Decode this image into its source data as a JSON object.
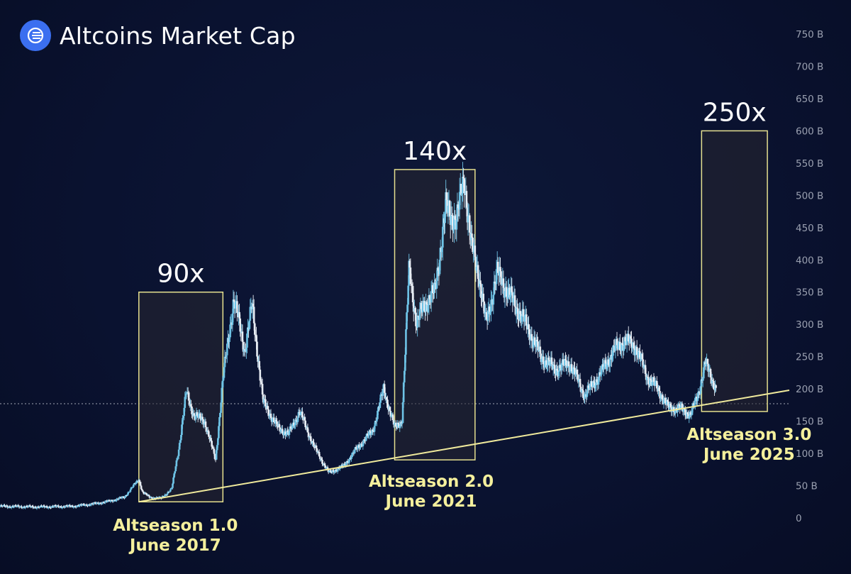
{
  "header": {
    "title": "Altcoins Market Cap",
    "logo_icon": "fanned-lines-icon",
    "logo_color": "#3b6ff0"
  },
  "chart_data": {
    "type": "candlestick",
    "title": "Altcoins Market Cap",
    "y_unit": "B",
    "ylim": [
      0,
      750
    ],
    "y_ticks": [
      "750 B",
      "700 B",
      "650 B",
      "600 B",
      "550 B",
      "500 B",
      "450 B",
      "400 B",
      "350 B",
      "300 B",
      "250 B",
      "200 B",
      "150 B",
      "100 B",
      "50 B",
      "0"
    ],
    "y_tick_values": [
      750,
      700,
      650,
      600,
      550,
      500,
      450,
      400,
      350,
      300,
      250,
      200,
      150,
      100,
      50,
      0
    ],
    "current_price_line": 177,
    "colors": {
      "up": "#6ec3e6",
      "down": "#e8edf4",
      "box": "#e6e08f",
      "trendline": "#f0ea9c",
      "label": "#f4ef9c"
    },
    "x_range": [
      2015.5,
      2026.3
    ],
    "series": [
      {
        "x": [
          2015.5,
          2016.0,
          2016.5,
          2016.8,
          2017.0,
          2017.2,
          2017.4,
          2017.45,
          2017.55,
          2017.7,
          2017.85,
          2017.95,
          2018.05,
          2018.15,
          2018.3,
          2018.45,
          2018.55,
          2018.7,
          2018.85,
          2018.95,
          2019.1,
          2019.3,
          2019.45,
          2019.6,
          2019.8,
          2020.0,
          2020.2,
          2020.4,
          2020.6,
          2020.75,
          2020.9,
          2021.0,
          2021.1,
          2021.2,
          2021.3,
          2021.45,
          2021.6,
          2021.75,
          2021.85,
          2021.95,
          2022.05,
          2022.15,
          2022.3,
          2022.5,
          2022.7,
          2022.9,
          2023.1,
          2023.3,
          2023.5,
          2023.7,
          2023.9,
          2024.05,
          2024.2,
          2024.35,
          2024.5,
          2024.65,
          2024.8,
          2024.95,
          2025.05,
          2025.15,
          2025.3
        ],
        "values": [
          18,
          17,
          18,
          22,
          26,
          32,
          60,
          40,
          32,
          30,
          45,
          110,
          195,
          160,
          150,
          90,
          215,
          340,
          260,
          330,
          180,
          140,
          130,
          165,
          110,
          70,
          80,
          110,
          135,
          200,
          140,
          150,
          390,
          300,
          330,
          350,
          480,
          460,
          530,
          420,
          380,
          300,
          380,
          340,
          300,
          250,
          230,
          240,
          190,
          220,
          260,
          275,
          265,
          220,
          200,
          170,
          170,
          160,
          190,
          240,
          200
        ]
      }
    ],
    "annotations": [
      {
        "label": "90x",
        "box_y_range": [
          25,
          350
        ],
        "sub": [
          "Altseason 1.0",
          "June 2017"
        ]
      },
      {
        "label": "140x",
        "box_y_range": [
          90,
          540
        ],
        "sub": [
          "Altseason 2.0",
          "June 2021"
        ]
      },
      {
        "label": "250x",
        "box_y_range": [
          165,
          600
        ],
        "sub": [
          "Altseason 3.0",
          "June 2025"
        ]
      }
    ],
    "trendline": {
      "from": [
        2017.4,
        25
      ],
      "to": [
        2026.3,
        198
      ]
    },
    "grid": false,
    "legend": "none"
  }
}
